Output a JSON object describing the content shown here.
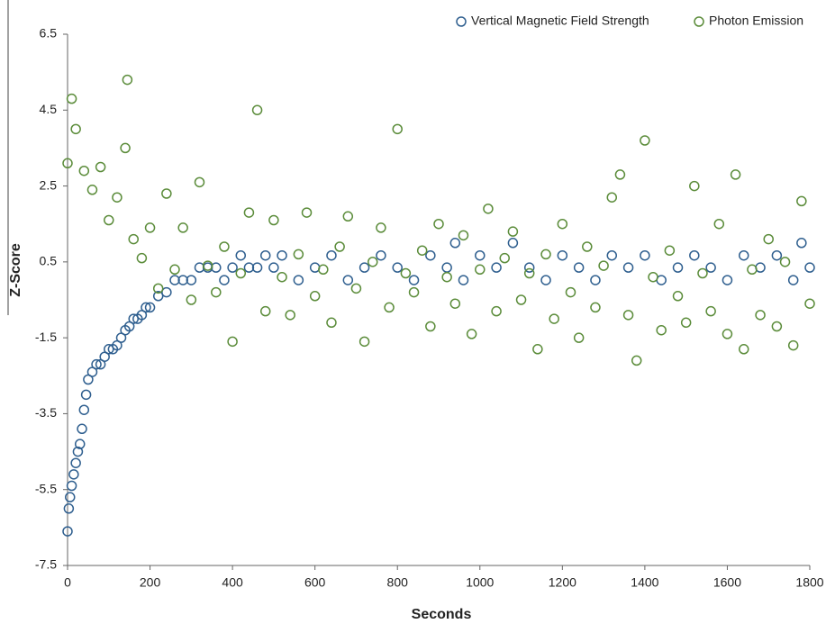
{
  "chart_data": {
    "type": "scatter",
    "x_label": "Seconds",
    "y_label": "Z-Score",
    "xlim": [
      0,
      1800
    ],
    "xticks": [
      0,
      200,
      400,
      600,
      800,
      1000,
      1200,
      1400,
      1600,
      1800
    ],
    "ylim": [
      -7.5,
      6.5
    ],
    "yticks": [
      -7.5,
      -5.5,
      -3.5,
      -1.5,
      0.5,
      2.5,
      4.5,
      6.5
    ],
    "legend": "top-right",
    "series": [
      {
        "name": "Vertical Magnetic Field Strength",
        "color": "#2f5f8f",
        "x": [
          0,
          3,
          6,
          10,
          15,
          20,
          25,
          30,
          35,
          40,
          45,
          50,
          60,
          70,
          80,
          90,
          100,
          110,
          120,
          130,
          140,
          150,
          160,
          170,
          180,
          190,
          200,
          220,
          240,
          260,
          280,
          300,
          320,
          340,
          360,
          380,
          400,
          420,
          440,
          460,
          480,
          500,
          520,
          560,
          600,
          640,
          680,
          720,
          760,
          800,
          840,
          880,
          920,
          940,
          960,
          1000,
          1040,
          1080,
          1120,
          1160,
          1200,
          1240,
          1280,
          1320,
          1360,
          1400,
          1440,
          1480,
          1520,
          1560,
          1600,
          1640,
          1680,
          1720,
          1760,
          1780,
          1800
        ],
        "values": [
          -6.6,
          -6.0,
          -5.7,
          -5.4,
          -5.1,
          -4.8,
          -4.5,
          -4.3,
          -3.9,
          -3.4,
          -3.0,
          -2.6,
          -2.4,
          -2.2,
          -2.2,
          -2.0,
          -1.8,
          -1.8,
          -1.7,
          -1.5,
          -1.3,
          -1.2,
          -1.0,
          -1.0,
          -0.9,
          -0.7,
          -0.7,
          -0.4,
          -0.3,
          0.02,
          0.02,
          0.02,
          0.35,
          0.35,
          0.35,
          0.02,
          0.35,
          0.67,
          0.35,
          0.35,
          0.67,
          0.35,
          0.67,
          0.02,
          0.35,
          0.67,
          0.02,
          0.35,
          0.67,
          0.35,
          0.02,
          0.67,
          0.35,
          1.0,
          0.02,
          0.67,
          0.35,
          1.0,
          0.35,
          0.02,
          0.67,
          0.35,
          0.02,
          0.67,
          0.35,
          0.67,
          0.02,
          0.35,
          0.67,
          0.35,
          0.02,
          0.67,
          0.35,
          0.67,
          0.02,
          1.0,
          0.35
        ]
      },
      {
        "name": "Photon Emission",
        "color": "#5b8c3a",
        "x": [
          0,
          20,
          40,
          60,
          80,
          100,
          120,
          140,
          160,
          180,
          200,
          220,
          240,
          260,
          280,
          300,
          320,
          340,
          360,
          380,
          400,
          420,
          440,
          460,
          480,
          500,
          520,
          540,
          560,
          580,
          600,
          620,
          640,
          660,
          680,
          700,
          720,
          740,
          760,
          780,
          800,
          820,
          840,
          860,
          880,
          900,
          920,
          940,
          960,
          980,
          1000,
          1020,
          1040,
          1060,
          1080,
          1100,
          1120,
          1140,
          1160,
          1180,
          1200,
          1220,
          1240,
          1260,
          1280,
          1300,
          1320,
          1340,
          1360,
          1380,
          1400,
          1420,
          1440,
          1460,
          1480,
          1500,
          1520,
          1540,
          1560,
          1580,
          1600,
          1620,
          1640,
          1660,
          1680,
          1700,
          1720,
          1740,
          1760,
          1780,
          1800,
          145,
          10
        ],
        "values": [
          3.1,
          4.0,
          2.9,
          2.4,
          3.0,
          1.6,
          2.2,
          3.5,
          1.1,
          0.6,
          1.4,
          -0.2,
          2.3,
          0.3,
          1.4,
          -0.5,
          2.6,
          0.4,
          -0.3,
          0.9,
          -1.6,
          0.2,
          1.8,
          4.5,
          -0.8,
          1.6,
          0.1,
          -0.9,
          0.7,
          1.8,
          -0.4,
          0.3,
          -1.1,
          0.9,
          1.7,
          -0.2,
          -1.6,
          0.5,
          1.4,
          -0.7,
          4.0,
          0.2,
          -0.3,
          0.8,
          -1.2,
          1.5,
          0.1,
          -0.6,
          1.2,
          -1.4,
          0.3,
          1.9,
          -0.8,
          0.6,
          1.3,
          -0.5,
          0.2,
          -1.8,
          0.7,
          -1.0,
          1.5,
          -0.3,
          -1.5,
          0.9,
          -0.7,
          0.4,
          2.2,
          2.8,
          -0.9,
          -2.1,
          3.7,
          0.1,
          -1.3,
          0.8,
          -0.4,
          -1.1,
          2.5,
          0.2,
          -0.8,
          1.5,
          -1.4,
          2.8,
          -1.8,
          0.3,
          -0.9,
          1.1,
          -1.2,
          0.5,
          -1.7,
          2.1,
          -0.6,
          5.3,
          4.8
        ]
      }
    ]
  }
}
